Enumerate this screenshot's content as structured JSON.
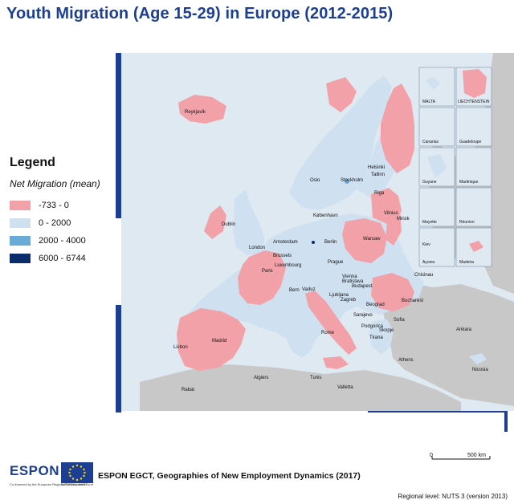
{
  "title": "Youth Migration (Age 15-29) in Europe (2012-2015)",
  "legend": {
    "title": "Legend",
    "subtitle": "Net Migration (mean)",
    "items": [
      {
        "label": "-733 - 0",
        "color": "#f3a1a8"
      },
      {
        "label": "0 - 2000",
        "color": "#cfe0f1"
      },
      {
        "label": "2000 - 4000",
        "color": "#6aaad9"
      },
      {
        "label": "6000 - 6744",
        "color": "#0a2c6b"
      }
    ]
  },
  "map": {
    "sea_color": "#dfe9f2",
    "nonmember_land_color": "#c8c8c8",
    "cities": [
      {
        "name": "Reykjavík"
      },
      {
        "name": "Helsinki"
      },
      {
        "name": "Tallinn"
      },
      {
        "name": "Oslo"
      },
      {
        "name": "Stockholm"
      },
      {
        "name": "Riga"
      },
      {
        "name": "København"
      },
      {
        "name": "Vilnius"
      },
      {
        "name": "Minsk"
      },
      {
        "name": "Dublin"
      },
      {
        "name": "Amsterdam"
      },
      {
        "name": "Berlin"
      },
      {
        "name": "Warsaw"
      },
      {
        "name": "London"
      },
      {
        "name": "Brussels"
      },
      {
        "name": "Luxembourg"
      },
      {
        "name": "Prague"
      },
      {
        "name": "Paris"
      },
      {
        "name": "Bern"
      },
      {
        "name": "Vaduz"
      },
      {
        "name": "Vienna"
      },
      {
        "name": "Bratislava"
      },
      {
        "name": "Budapest"
      },
      {
        "name": "Chisinau"
      },
      {
        "name": "Ljubljana"
      },
      {
        "name": "Zagreb"
      },
      {
        "name": "Bucharest"
      },
      {
        "name": "Beograd"
      },
      {
        "name": "Sarajevo"
      },
      {
        "name": "Sofia"
      },
      {
        "name": "Podgorica"
      },
      {
        "name": "Skopje"
      },
      {
        "name": "Tirana"
      },
      {
        "name": "Ankara"
      },
      {
        "name": "Lisbon"
      },
      {
        "name": "Madrid"
      },
      {
        "name": "Rome"
      },
      {
        "name": "Athens"
      },
      {
        "name": "Nicosia"
      },
      {
        "name": "Algiers"
      },
      {
        "name": "Tunis"
      },
      {
        "name": "Valletta"
      },
      {
        "name": "Rabat"
      }
    ],
    "insets": [
      {
        "label": "MALTA"
      },
      {
        "label": "LIECHTENSTEIN"
      },
      {
        "label": "Canarias"
      },
      {
        "label": "Guadeloupe"
      },
      {
        "label": "Guyane"
      },
      {
        "label": "Martinique"
      },
      {
        "label": "Mayotte"
      },
      {
        "label": "Réunion"
      },
      {
        "label": "Kiev"
      },
      {
        "label": "Açores"
      },
      {
        "label": "Madeira"
      }
    ],
    "scale": {
      "zero": "0",
      "distance": "500 km"
    }
  },
  "footer": {
    "logo": "ESPON",
    "logo_tagline": "Co-financed by the European Regional Development Fund",
    "eu_caption": "EUROPEAN UNION",
    "credit": "ESPON EGCT, Geographies of New Employment Dynamics (2017)",
    "regional_level": "Regional level: NUTS 3 (version 2013)"
  }
}
